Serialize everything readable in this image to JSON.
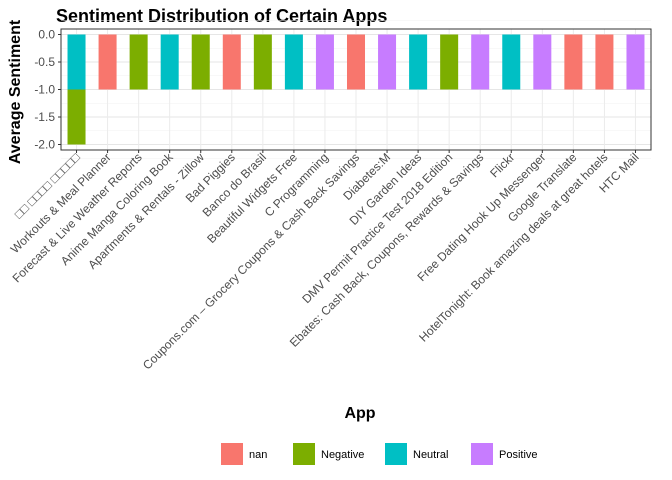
{
  "chart_data": {
    "type": "bar",
    "title": "Sentiment Distribution of Certain Apps",
    "xlabel": "App",
    "ylabel": "Average Sentiment",
    "ylim": [
      -2.0,
      0.0
    ],
    "yticks": [
      "0.0",
      "-0.5",
      "-1.0",
      "-1.5",
      "-2.0"
    ],
    "ytick_values": [
      0.0,
      -0.5,
      -1.0,
      -1.5,
      -2.0
    ],
    "grid": true,
    "legend_position": "bottom",
    "categories": [
      "□□ □□□□ □□□□□",
      "Workouts & Meal Planner",
      "Forecast & Live Weather Reports",
      "Anime Manga Coloring Book",
      "Apartments & Rentals - Zillow",
      "Bad Piggies",
      "Banco do Brasil",
      "Beautiful Widgets Free",
      "C Programming",
      "Coupons.com – Grocery Coupons & Cash Back Savings",
      "Diabetes:M",
      "DIY Garden Ideas",
      "DMV Permit Practice Test 2018 Edition",
      "Ebates: Cash Back, Coupons, Rewards & Savings",
      "Flickr",
      "Free Dating Hook Up Messenger",
      "Google Translate",
      "HotelTonight: Book amazing deals at great hotels",
      "HTC Mail"
    ],
    "bars": [
      [
        {
          "sentiment": "Neutral",
          "value": -1.0
        },
        {
          "sentiment": "Negative",
          "value": -1.0
        }
      ],
      [
        {
          "sentiment": "nan",
          "value": -1.0
        }
      ],
      [
        {
          "sentiment": "Negative",
          "value": -1.0
        }
      ],
      [
        {
          "sentiment": "Neutral",
          "value": -1.0
        }
      ],
      [
        {
          "sentiment": "Negative",
          "value": -1.0
        }
      ],
      [
        {
          "sentiment": "nan",
          "value": -1.0
        }
      ],
      [
        {
          "sentiment": "Negative",
          "value": -1.0
        }
      ],
      [
        {
          "sentiment": "Neutral",
          "value": -1.0
        }
      ],
      [
        {
          "sentiment": "Positive",
          "value": -1.0
        }
      ],
      [
        {
          "sentiment": "nan",
          "value": -1.0
        }
      ],
      [
        {
          "sentiment": "Positive",
          "value": -1.0
        }
      ],
      [
        {
          "sentiment": "Neutral",
          "value": -1.0
        }
      ],
      [
        {
          "sentiment": "Negative",
          "value": -1.0
        }
      ],
      [
        {
          "sentiment": "Positive",
          "value": -1.0
        }
      ],
      [
        {
          "sentiment": "Neutral",
          "value": -1.0
        }
      ],
      [
        {
          "sentiment": "Positive",
          "value": -1.0
        }
      ],
      [
        {
          "sentiment": "nan",
          "value": -1.0
        }
      ],
      [
        {
          "sentiment": "nan",
          "value": -1.0
        }
      ],
      [
        {
          "sentiment": "Positive",
          "value": -1.0
        }
      ]
    ],
    "legend": [
      {
        "label": "nan",
        "color": "#F8766D"
      },
      {
        "label": "Negative",
        "color": "#7CAE00"
      },
      {
        "label": "Neutral",
        "color": "#00BFC4"
      },
      {
        "label": "Positive",
        "color": "#C77CFF"
      }
    ]
  }
}
